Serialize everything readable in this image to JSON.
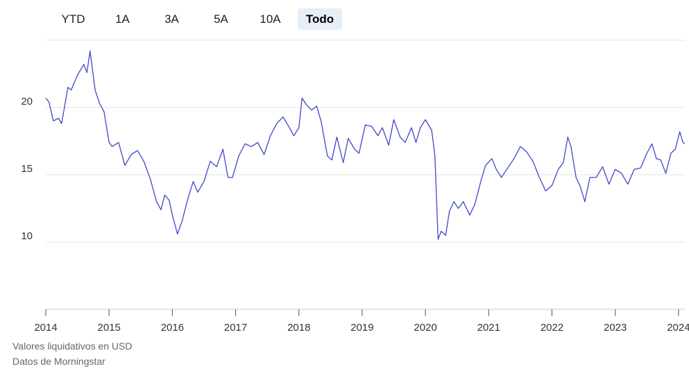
{
  "range_buttons": [
    "YTD",
    "1A",
    "3A",
    "5A",
    "10A",
    "Todo"
  ],
  "active_button": 5,
  "chart_data": {
    "type": "line",
    "x": [
      2014.0,
      2014.05,
      2014.12,
      2014.2,
      2014.25,
      2014.35,
      2014.4,
      2014.5,
      2014.6,
      2014.65,
      2014.7,
      2014.78,
      2014.85,
      2014.92,
      2015.0,
      2015.05,
      2015.15,
      2015.25,
      2015.35,
      2015.45,
      2015.55,
      2015.65,
      2015.75,
      2015.82,
      2015.88,
      2015.95,
      2016.0,
      2016.08,
      2016.15,
      2016.25,
      2016.33,
      2016.4,
      2016.5,
      2016.6,
      2016.7,
      2016.8,
      2016.88,
      2016.95,
      2017.05,
      2017.15,
      2017.25,
      2017.35,
      2017.45,
      2017.55,
      2017.65,
      2017.75,
      2017.85,
      2017.92,
      2018.0,
      2018.05,
      2018.12,
      2018.2,
      2018.28,
      2018.35,
      2018.45,
      2018.52,
      2018.6,
      2018.7,
      2018.78,
      2018.88,
      2018.95,
      2019.05,
      2019.15,
      2019.25,
      2019.32,
      2019.42,
      2019.5,
      2019.6,
      2019.68,
      2019.78,
      2019.85,
      2019.92,
      2020.0,
      2020.1,
      2020.15,
      2020.2,
      2020.25,
      2020.32,
      2020.38,
      2020.45,
      2020.52,
      2020.6,
      2020.7,
      2020.78,
      2020.88,
      2020.95,
      2021.05,
      2021.12,
      2021.2,
      2021.3,
      2021.4,
      2021.5,
      2021.6,
      2021.7,
      2021.8,
      2021.9,
      2022.0,
      2022.1,
      2022.18,
      2022.25,
      2022.3,
      2022.38,
      2022.45,
      2022.52,
      2022.6,
      2022.7,
      2022.8,
      2022.9,
      2023.0,
      2023.1,
      2023.2,
      2023.3,
      2023.4,
      2023.5,
      2023.58,
      2023.65,
      2023.72,
      2023.8,
      2023.88,
      2023.95,
      2024.02,
      2024.07,
      2024.1
    ],
    "series": [
      {
        "color": "#3f46c8",
        "values": [
          20.7,
          20.4,
          19.0,
          19.2,
          18.8,
          21.5,
          21.3,
          22.4,
          23.2,
          22.6,
          24.2,
          21.3,
          20.3,
          19.7,
          17.4,
          17.1,
          17.4,
          15.7,
          16.5,
          16.8,
          16.0,
          14.7,
          13.0,
          12.4,
          13.5,
          13.1,
          12.0,
          10.6,
          11.5,
          13.3,
          14.5,
          13.7,
          14.5,
          16.0,
          15.6,
          16.9,
          14.8,
          14.8,
          16.4,
          17.3,
          17.1,
          17.4,
          16.5,
          17.9,
          18.8,
          19.3,
          18.5,
          17.9,
          18.5,
          20.7,
          20.2,
          19.8,
          20.1,
          19.0,
          16.4,
          16.1,
          17.8,
          15.9,
          17.7,
          16.9,
          16.6,
          18.7,
          18.6,
          17.9,
          18.5,
          17.2,
          19.1,
          17.8,
          17.4,
          18.5,
          17.4,
          18.5,
          19.1,
          18.3,
          16.4,
          10.2,
          10.8,
          10.5,
          12.3,
          13.0,
          12.5,
          13.0,
          12.0,
          12.8,
          14.6,
          15.7,
          16.2,
          15.4,
          14.8,
          15.5,
          16.2,
          17.1,
          16.7,
          16.0,
          14.8,
          13.8,
          14.2,
          15.4,
          15.9,
          17.8,
          17.1,
          14.8,
          14.1,
          13.0,
          14.8,
          14.8,
          15.6,
          14.3,
          15.4,
          15.1,
          14.3,
          15.4,
          15.5,
          16.6,
          17.3,
          16.2,
          16.1,
          15.1,
          16.6,
          16.9,
          18.2,
          17.4,
          17.3
        ]
      }
    ],
    "xlim": [
      2014,
      2024.1
    ],
    "xticks": [
      2014,
      2015,
      2016,
      2017,
      2018,
      2019,
      2020,
      2021,
      2022,
      2023,
      2024
    ],
    "ylim": [
      5,
      25
    ],
    "yticks": [
      10,
      15,
      20
    ],
    "grid": true,
    "notes": [
      "Valores liquidativos en USD",
      "Datos de Morningstar"
    ]
  }
}
